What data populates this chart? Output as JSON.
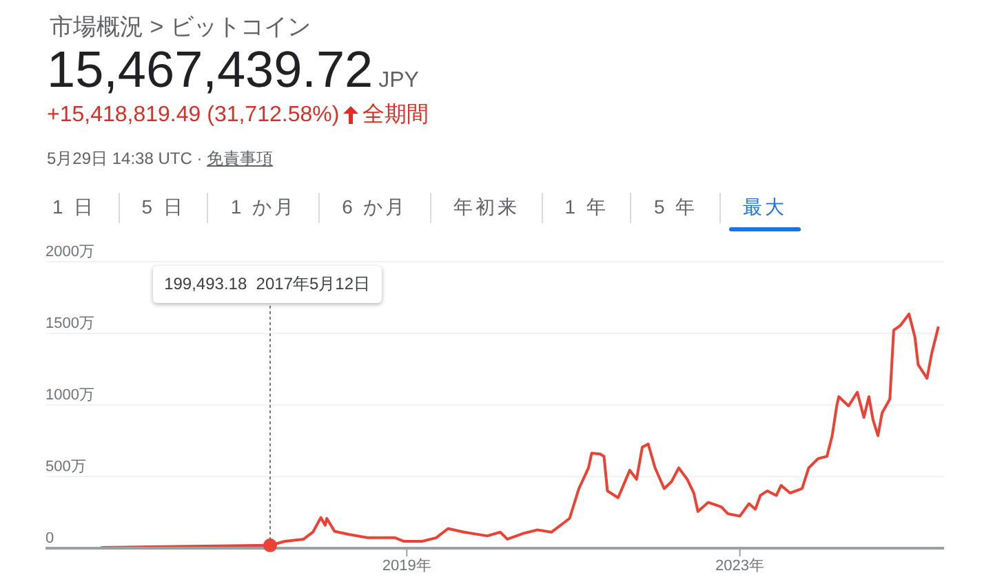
{
  "chart_data": {
    "type": "line",
    "title": "市場概況 > ビットコイン",
    "subtitle": "15,467,439.72",
    "annotations": [
      "JPY",
      "+15,418,819.49 (31,712.58%)",
      "全期間",
      "5月29日 14:38 UTC ·",
      "免責事項",
      "1 日",
      "5 日",
      "1 か月",
      "6 か月",
      "年初来",
      "1 年",
      "5 年",
      "最大",
      {
        "text": "199,493.18  2017年5月12日",
        "x": "2017-05-12",
        "y": 19.949318
      }
    ],
    "x": [
      "2015-05-01",
      "2017-05-12",
      "2017-07-15",
      "2017-10-05",
      "2017-11-15",
      "2017-12-20",
      "2018-01-08",
      "2018-01-15",
      "2018-02-18",
      "2018-04-22",
      "2018-07-12",
      "2018-11-10",
      "2018-12-20",
      "2019-03-10",
      "2019-05-10",
      "2019-07-01",
      "2019-09-10",
      "2019-12-20",
      "2020-02-15",
      "2020-03-17",
      "2020-05-30",
      "2020-07-27",
      "2020-09-27",
      "2020-12-15",
      "2021-01-25",
      "2021-03-08",
      "2021-03-22",
      "2021-04-28",
      "2021-05-15",
      "2021-05-30",
      "2021-07-16",
      "2021-09-05",
      "2021-10-05",
      "2021-10-30",
      "2021-11-25",
      "2021-12-25",
      "2022-02-03",
      "2022-03-07",
      "2022-04-08",
      "2022-05-15",
      "2022-06-13",
      "2022-07-01",
      "2022-08-15",
      "2022-10-12",
      "2022-11-10",
      "2023-01-01",
      "2023-02-10",
      "2023-03-10",
      "2023-04-01",
      "2023-05-01",
      "2023-06-10",
      "2023-07-01",
      "2023-08-10",
      "2023-10-01",
      "2023-10-30",
      "2023-12-10",
      "2024-01-18",
      "2024-02-10",
      "2024-03-01",
      "2024-03-10",
      "2024-04-22",
      "2024-05-30",
      "2024-06-28",
      "2024-07-20",
      "2024-08-07",
      "2024-08-29",
      "2024-09-16",
      "2024-10-20",
      "2024-11-06",
      "2024-12-05",
      "2025-01-12",
      "2025-02-07",
      "2025-02-21",
      "2025-04-01",
      "2025-04-22",
      "2025-05-21"
    ],
    "series": [
      {
        "color": "#ea4335",
        "values": [
          5,
          19.949318,
          48,
          63,
          112,
          214,
          160,
          208,
          118,
          96,
          73,
          73,
          48,
          48,
          73,
          137,
          112,
          86,
          112,
          63,
          105,
          128,
          112,
          208,
          416,
          561,
          663,
          657,
          641,
          400,
          352,
          544,
          481,
          705,
          727,
          561,
          416,
          464,
          561,
          481,
          385,
          256,
          320,
          288,
          240,
          224,
          311,
          272,
          368,
          400,
          368,
          438,
          385,
          416,
          561,
          625,
          641,
          785,
          993,
          1058,
          993,
          1089,
          913,
          1058,
          897,
          785,
          945,
          1041,
          1522,
          1554,
          1635,
          1474,
          1282,
          1186,
          1362,
          1547
        ]
      }
    ],
    "xlim": [
      "2014-08-30",
      "2025-06-15"
    ],
    "xticks": [
      {
        "value": "2019-01-01",
        "label": "2019年"
      },
      {
        "value": "2023-01-01",
        "label": "2023年"
      }
    ],
    "ylim": [
      0,
      2000
    ],
    "yticks": [
      0,
      {
        "value": 500,
        "label": "500万"
      },
      {
        "value": 1000,
        "label": "1000万"
      },
      {
        "value": 1500,
        "label": "1500万"
      },
      {
        "value": 2000,
        "label": "2000万"
      }
    ],
    "grid": "y",
    "legend": false,
    "marker": "none",
    "line_style": "solid"
  }
}
